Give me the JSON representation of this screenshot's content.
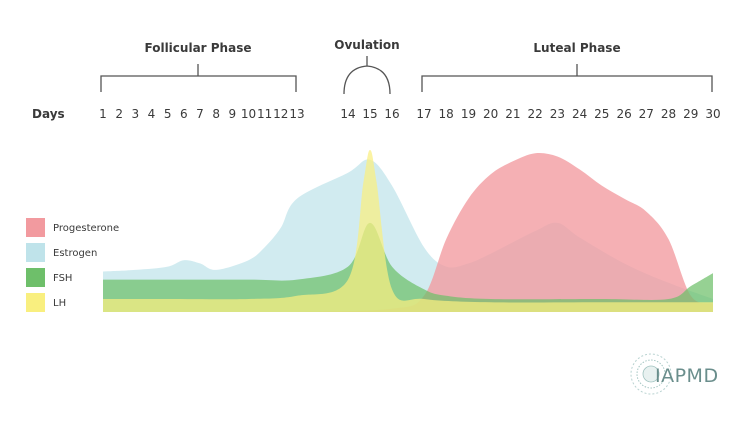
{
  "phases": {
    "follicular": "Follicular Phase",
    "ovulation": "Ovulation",
    "luteal": "Luteal Phase"
  },
  "days_title": "Days",
  "logo_text": "IAPMD",
  "colors": {
    "progesterone": "#f29a9f",
    "estrogen": "#bfe3ea",
    "fsh": "#6ebf6a",
    "lh": "#f9ef7f",
    "bracket": "#555555",
    "logo": "#6a8e8c"
  },
  "chart_data": {
    "type": "area",
    "title": "",
    "xlabel": "Days",
    "ylabel": "",
    "x_ticks": [
      1,
      2,
      3,
      4,
      5,
      6,
      7,
      8,
      9,
      10,
      11,
      12,
      13,
      14,
      15,
      16,
      17,
      18,
      19,
      20,
      21,
      22,
      23,
      24,
      25,
      26,
      27,
      28,
      29,
      30
    ],
    "xlim": [
      1,
      30
    ],
    "ylim": [
      0,
      100
    ],
    "grid": false,
    "legend_position": "left",
    "series": [
      {
        "name": "Progesterone",
        "color": "#f29a9f",
        "x": [
          1,
          5,
          10,
          13,
          16,
          17,
          18,
          19,
          20,
          21,
          22,
          23,
          24,
          25,
          26,
          27,
          28,
          29,
          30
        ],
        "y": [
          0,
          0,
          0,
          0,
          2,
          10,
          45,
          70,
          85,
          93,
          98,
          96,
          88,
          78,
          70,
          62,
          45,
          10,
          5
        ]
      },
      {
        "name": "Estrogen",
        "color": "#bfe3ea",
        "x": [
          1,
          3,
          5,
          6,
          7,
          8,
          10,
          11,
          12,
          13,
          14,
          15,
          16,
          17,
          18,
          19,
          20,
          22,
          23,
          24,
          26,
          28,
          30
        ],
        "y": [
          25,
          26,
          28,
          32,
          30,
          26,
          32,
          40,
          52,
          70,
          86,
          94,
          78,
          40,
          28,
          30,
          36,
          50,
          55,
          46,
          30,
          18,
          8
        ]
      },
      {
        "name": "FSH",
        "color": "#6ebf6a",
        "x": [
          1,
          5,
          10,
          13,
          14,
          15,
          16,
          17,
          18,
          20,
          25,
          28,
          29,
          30
        ],
        "y": [
          20,
          20,
          20,
          20,
          28,
          55,
          28,
          14,
          10,
          8,
          8,
          8,
          16,
          24
        ]
      },
      {
        "name": "LH",
        "color": "#f9ef7f",
        "x": [
          1,
          5,
          10,
          13,
          14,
          14.7,
          15,
          15.3,
          16,
          17,
          20,
          25,
          30
        ],
        "y": [
          8,
          8,
          8,
          10,
          20,
          80,
          100,
          80,
          14,
          8,
          6,
          6,
          6
        ]
      }
    ]
  }
}
